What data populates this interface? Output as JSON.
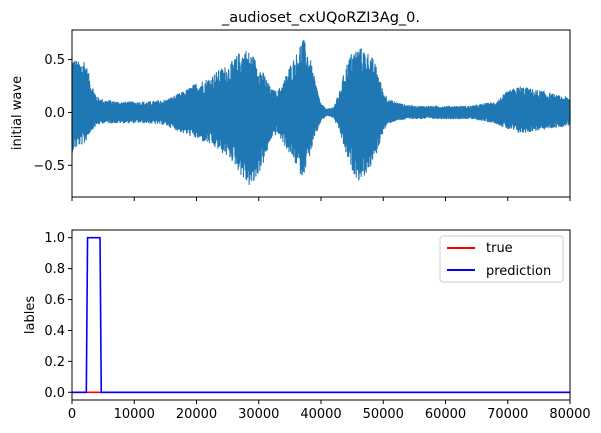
{
  "chart_data": [
    {
      "type": "line",
      "title": "_audioset_cxUQoRZI3Ag_0.",
      "xlabel": "",
      "ylabel": "initial wave",
      "xlim": [
        0,
        80000
      ],
      "ylim": [
        -0.8,
        0.78
      ],
      "yticks": [
        0.5,
        0.0,
        -0.5
      ],
      "ytick_labels": [
        "0.5",
        "0.0",
        "−0.5"
      ],
      "xticks_shown_without_labels": true,
      "grid": false,
      "series": [
        {
          "color": "#1f77b4",
          "kind": "waveform envelope (max, min) at sampled x",
          "x": [
            0,
            1000,
            2000,
            3000,
            4000,
            5000,
            8000,
            12000,
            15000,
            18000,
            20000,
            22000,
            24000,
            25000,
            26000,
            27000,
            28000,
            29000,
            30000,
            31000,
            32000,
            33000,
            34000,
            35000,
            36000,
            37000,
            38000,
            39000,
            40000,
            41000,
            42000,
            43000,
            44000,
            45000,
            46000,
            47000,
            48000,
            49000,
            50000,
            51000,
            52000,
            53000,
            54000,
            55000,
            56000,
            57000,
            58000,
            60000,
            64000,
            68000,
            70000,
            72000,
            74000,
            76000,
            78000,
            80000
          ],
          "max": [
            0.55,
            0.48,
            0.52,
            0.3,
            0.15,
            0.12,
            0.1,
            0.1,
            0.12,
            0.2,
            0.28,
            0.33,
            0.42,
            0.45,
            0.5,
            0.58,
            0.6,
            0.55,
            0.45,
            0.35,
            0.22,
            0.2,
            0.3,
            0.45,
            0.55,
            0.72,
            0.58,
            0.32,
            0.08,
            0.03,
            0.05,
            0.2,
            0.45,
            0.58,
            0.62,
            0.6,
            0.55,
            0.42,
            0.2,
            0.12,
            0.1,
            0.08,
            0.07,
            0.06,
            0.06,
            0.06,
            0.06,
            0.06,
            0.06,
            0.1,
            0.2,
            0.25,
            0.22,
            0.2,
            0.16,
            0.14
          ],
          "min": [
            -0.38,
            -0.32,
            -0.3,
            -0.18,
            -0.12,
            -0.1,
            -0.1,
            -0.1,
            -0.12,
            -0.2,
            -0.25,
            -0.3,
            -0.38,
            -0.42,
            -0.48,
            -0.58,
            -0.68,
            -0.72,
            -0.58,
            -0.45,
            -0.25,
            -0.2,
            -0.3,
            -0.4,
            -0.5,
            -0.62,
            -0.45,
            -0.25,
            -0.08,
            -0.03,
            -0.05,
            -0.18,
            -0.4,
            -0.55,
            -0.65,
            -0.6,
            -0.52,
            -0.38,
            -0.18,
            -0.1,
            -0.08,
            -0.07,
            -0.06,
            -0.06,
            -0.06,
            -0.06,
            -0.06,
            -0.06,
            -0.06,
            -0.1,
            -0.16,
            -0.2,
            -0.18,
            -0.16,
            -0.14,
            -0.12
          ]
        }
      ]
    },
    {
      "type": "line",
      "title": "",
      "xlabel": "",
      "ylabel": "lables",
      "xlim": [
        0,
        80000
      ],
      "ylim": [
        -0.05,
        1.05
      ],
      "xticks": [
        0,
        10000,
        20000,
        30000,
        40000,
        50000,
        60000,
        70000,
        80000
      ],
      "xtick_labels": [
        "0",
        "10000",
        "20000",
        "30000",
        "40000",
        "50000",
        "60000",
        "70000",
        "80000"
      ],
      "yticks": [
        0.0,
        0.2,
        0.4,
        0.6,
        0.8,
        1.0
      ],
      "ytick_labels": [
        "0.0",
        "0.2",
        "0.4",
        "0.6",
        "0.8",
        "1.0"
      ],
      "grid": false,
      "legend_position": "upper right",
      "series": [
        {
          "name": "true",
          "color": "#ff0000",
          "x": [
            0,
            80000
          ],
          "y": [
            0,
            0
          ]
        },
        {
          "name": "prediction",
          "color": "#0000ff",
          "x": [
            0,
            2300,
            2500,
            4500,
            4700,
            80000
          ],
          "y": [
            0,
            0,
            1,
            1,
            0,
            0
          ]
        }
      ]
    }
  ]
}
